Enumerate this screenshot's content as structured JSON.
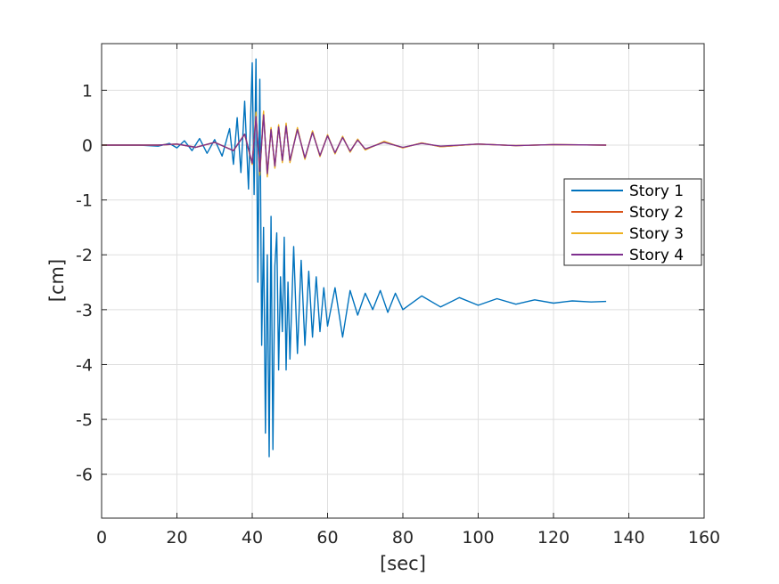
{
  "chart_data": {
    "type": "line",
    "xlabel": "[sec]",
    "ylabel": "[cm]",
    "xlim": [
      0,
      160
    ],
    "ylim": [
      -6.8,
      1.85
    ],
    "x_ticks": [
      "0",
      "20",
      "40",
      "60",
      "80",
      "100",
      "120",
      "140",
      "160"
    ],
    "y_ticks": [
      "1",
      "0",
      "-1",
      "-2",
      "-3",
      "-4",
      "-5",
      "-6"
    ],
    "grid": true,
    "legend_position": "right",
    "series": [
      {
        "name": "Story 1",
        "color": "#0072BD",
        "x": [
          0,
          10,
          15,
          18,
          20,
          22,
          24,
          26,
          28,
          30,
          32,
          34,
          35,
          36,
          37,
          38,
          39,
          40,
          40.5,
          41,
          41.5,
          42,
          42.5,
          43,
          43.5,
          44,
          44.5,
          45,
          45.5,
          46,
          46.5,
          47,
          47.5,
          48,
          48.5,
          49,
          49.5,
          50,
          51,
          52,
          53,
          54,
          55,
          56,
          57,
          58,
          59,
          60,
          62,
          64,
          66,
          68,
          70,
          72,
          74,
          76,
          78,
          80,
          85,
          90,
          95,
          100,
          105,
          110,
          115,
          120,
          125,
          130,
          134
        ],
        "y": [
          0,
          0,
          -0.02,
          0.03,
          -0.05,
          0.08,
          -0.1,
          0.12,
          -0.15,
          0.1,
          -0.2,
          0.3,
          -0.35,
          0.5,
          -0.5,
          0.8,
          -0.8,
          1.5,
          -0.9,
          1.57,
          -2.5,
          1.2,
          -3.65,
          -1.5,
          -5.25,
          -2.0,
          -5.68,
          -1.3,
          -5.55,
          -2.2,
          -1.6,
          -4.1,
          -2.4,
          -3.4,
          -1.68,
          -4.1,
          -2.5,
          -3.9,
          -1.85,
          -3.8,
          -2.1,
          -3.65,
          -2.3,
          -3.5,
          -2.4,
          -3.4,
          -2.6,
          -3.3,
          -2.6,
          -3.5,
          -2.65,
          -3.1,
          -2.7,
          -3.0,
          -2.65,
          -3.05,
          -2.7,
          -3.0,
          -2.75,
          -2.95,
          -2.78,
          -2.92,
          -2.8,
          -2.9,
          -2.82,
          -2.88,
          -2.84,
          -2.86,
          -2.85
        ]
      },
      {
        "name": "Story 2",
        "color": "#D95319",
        "x": [
          0,
          15,
          20,
          25,
          30,
          35,
          38,
          40,
          41,
          42,
          43,
          44,
          45,
          46,
          47,
          48,
          49,
          50,
          52,
          54,
          56,
          58,
          60,
          62,
          64,
          66,
          68,
          70,
          75,
          80,
          85,
          90,
          100,
          110,
          120,
          134
        ],
        "y": [
          0,
          0,
          0.02,
          -0.04,
          0.05,
          -0.1,
          0.2,
          -0.35,
          0.55,
          -0.5,
          0.6,
          -0.55,
          0.3,
          -0.4,
          0.35,
          -0.3,
          0.38,
          -0.3,
          0.3,
          -0.25,
          0.25,
          -0.2,
          0.18,
          -0.15,
          0.15,
          -0.12,
          0.1,
          -0.08,
          0.06,
          -0.05,
          0.04,
          -0.03,
          0.02,
          -0.01,
          0.01,
          0
        ]
      },
      {
        "name": "Story 3",
        "color": "#EDB120",
        "x": [
          0,
          15,
          20,
          25,
          30,
          35,
          38,
          40,
          41,
          42,
          43,
          44,
          45,
          46,
          47,
          48,
          49,
          50,
          52,
          54,
          56,
          58,
          60,
          62,
          64,
          66,
          68,
          70,
          75,
          80,
          85,
          90,
          100,
          110,
          120,
          134
        ],
        "y": [
          0,
          0,
          0.02,
          -0.04,
          0.05,
          -0.1,
          0.2,
          -0.35,
          0.6,
          -0.55,
          0.62,
          -0.58,
          0.32,
          -0.42,
          0.37,
          -0.32,
          0.4,
          -0.32,
          0.32,
          -0.26,
          0.26,
          -0.21,
          0.19,
          -0.16,
          0.16,
          -0.13,
          0.11,
          -0.09,
          0.07,
          -0.05,
          0.04,
          -0.03,
          0.02,
          -0.01,
          0.01,
          0
        ]
      },
      {
        "name": "Story 4",
        "color": "#7E2F8E",
        "x": [
          0,
          15,
          20,
          25,
          30,
          35,
          38,
          40,
          41,
          42,
          43,
          44,
          45,
          46,
          47,
          48,
          49,
          50,
          52,
          54,
          56,
          58,
          60,
          62,
          64,
          66,
          68,
          70,
          75,
          80,
          85,
          90,
          100,
          110,
          120,
          134
        ],
        "y": [
          0,
          0,
          0.02,
          -0.04,
          0.05,
          -0.1,
          0.2,
          -0.33,
          0.52,
          -0.48,
          0.55,
          -0.52,
          0.28,
          -0.38,
          0.33,
          -0.28,
          0.35,
          -0.28,
          0.28,
          -0.23,
          0.23,
          -0.19,
          0.17,
          -0.14,
          0.14,
          -0.11,
          0.09,
          -0.07,
          0.05,
          -0.04,
          0.03,
          -0.02,
          0.02,
          -0.01,
          0.01,
          0
        ]
      }
    ]
  }
}
